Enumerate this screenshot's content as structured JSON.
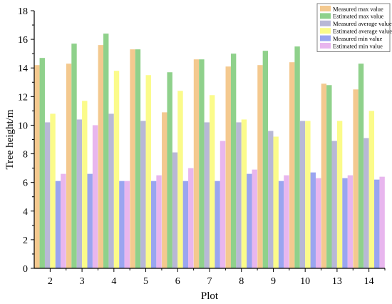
{
  "chart_data": {
    "type": "bar",
    "title": "",
    "xlabel": "Plot",
    "ylabel": "Tree height/m",
    "ylim": [
      0,
      18
    ],
    "yticks": [
      "0",
      "2",
      "4",
      "6",
      "8",
      "10",
      "12",
      "14",
      "16",
      "18"
    ],
    "grid": false,
    "legend_position": "top-right",
    "categories": [
      "2",
      "3",
      "4",
      "5",
      "6",
      "7",
      "8",
      "9",
      "10",
      "13",
      "14"
    ],
    "series": [
      {
        "name": "Measured max value",
        "color": "#f4c98f",
        "values": [
          14.2,
          14.3,
          15.6,
          15.3,
          10.9,
          14.6,
          14.1,
          14.2,
          14.4,
          12.9,
          12.5
        ]
      },
      {
        "name": "Estimated max value",
        "color": "#8fd18b",
        "values": [
          14.7,
          15.7,
          16.4,
          15.3,
          13.7,
          14.6,
          15.0,
          15.2,
          15.5,
          12.8,
          14.3
        ]
      },
      {
        "name": "Measured average value",
        "color": "#b8b8d6",
        "values": [
          10.2,
          10.4,
          10.8,
          10.3,
          8.1,
          10.2,
          10.2,
          9.6,
          10.3,
          8.9,
          9.1
        ]
      },
      {
        "name": "Estimated average value",
        "color": "#fbfb8a",
        "values": [
          10.8,
          11.7,
          13.8,
          13.5,
          12.4,
          12.1,
          10.4,
          9.2,
          10.3,
          10.3,
          11.0
        ]
      },
      {
        "name": "Measured min value",
        "color": "#9aa5f0",
        "values": [
          6.1,
          6.6,
          6.1,
          6.1,
          6.1,
          6.1,
          6.6,
          6.1,
          6.7,
          6.3,
          6.2
        ]
      },
      {
        "name": "Estimated min value",
        "color": "#e8b6ee",
        "values": [
          6.6,
          10.0,
          6.1,
          6.5,
          7.0,
          8.9,
          6.9,
          6.5,
          6.3,
          6.5,
          6.4
        ]
      }
    ]
  }
}
